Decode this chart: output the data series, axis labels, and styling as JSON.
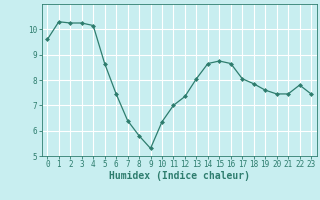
{
  "x": [
    0,
    1,
    2,
    3,
    4,
    5,
    6,
    7,
    8,
    9,
    10,
    11,
    12,
    13,
    14,
    15,
    16,
    17,
    18,
    19,
    20,
    21,
    22,
    23
  ],
  "y": [
    9.6,
    10.3,
    10.25,
    10.25,
    10.15,
    8.65,
    7.45,
    6.4,
    5.8,
    5.3,
    6.35,
    7.0,
    7.35,
    8.05,
    8.65,
    8.75,
    8.65,
    8.05,
    7.85,
    7.6,
    7.45,
    7.45,
    7.8,
    7.45
  ],
  "line_color": "#2e7d6e",
  "marker": "D",
  "marker_size": 2.0,
  "background_color": "#c8eef0",
  "grid_color": "#ffffff",
  "xlabel": "Humidex (Indice chaleur)",
  "ylim": [
    5,
    11
  ],
  "xlim": [
    -0.5,
    23.5
  ],
  "yticks": [
    5,
    6,
    7,
    8,
    9,
    10
  ],
  "xticks": [
    0,
    1,
    2,
    3,
    4,
    5,
    6,
    7,
    8,
    9,
    10,
    11,
    12,
    13,
    14,
    15,
    16,
    17,
    18,
    19,
    20,
    21,
    22,
    23
  ],
  "tick_color": "#2e7d6e",
  "label_color": "#2e7d6e",
  "font_size_xlabel": 7,
  "font_size_ticks": 5.5
}
